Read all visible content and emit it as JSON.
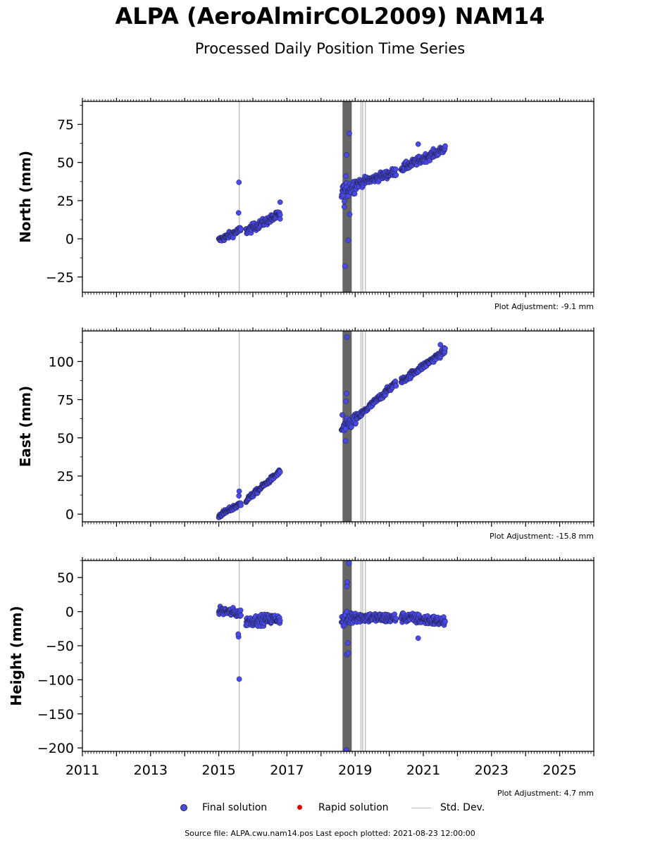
{
  "header": {
    "title": "ALPA (AeroAlmirCOL2009) NAM14",
    "subtitle": "Processed Daily Position Time Series"
  },
  "legend": {
    "final_label": "Final solution",
    "rapid_label": "Rapid solution",
    "std_label": "Std. Dev.",
    "final_color": "#4a4ae8",
    "rapid_color": "#e00000",
    "std_color": "#bbbbbb"
  },
  "footer": {
    "text": "Source file: ALPA.cwu.nam14.pos  Last epoch plotted: 2021-08-23 12:00:00"
  },
  "chart_data": [
    {
      "type": "scatter",
      "ylabel": "North (mm)",
      "xlim": [
        2011,
        2026
      ],
      "ylim": [
        -35,
        90
      ],
      "yticks": [
        -25,
        0,
        25,
        50,
        75
      ],
      "adjustment": "Plot Adjustment: -9.1 mm",
      "segments": [
        {
          "x0": 2015.0,
          "x1": 2015.65,
          "y0": -1,
          "y1": 6,
          "noise": 2
        },
        {
          "x0": 2015.8,
          "x1": 2016.8,
          "y0": 5,
          "y1": 16,
          "noise": 2.5
        },
        {
          "x0": 2018.6,
          "x1": 2019.05,
          "y0": 30,
          "y1": 36,
          "noise": 5
        },
        {
          "x0": 2019.05,
          "x1": 2020.2,
          "y0": 36,
          "y1": 44,
          "noise": 2.5
        },
        {
          "x0": 2020.35,
          "x1": 2021.64,
          "y0": 46,
          "y1": 59,
          "noise": 2.5
        }
      ],
      "outliers": [
        [
          2015.59,
          37
        ],
        [
          2015.58,
          17
        ],
        [
          2016.8,
          24
        ],
        [
          2016.8,
          13
        ],
        [
          2018.7,
          -18
        ],
        [
          2018.8,
          -1
        ],
        [
          2018.83,
          69
        ],
        [
          2018.75,
          55
        ],
        [
          2018.73,
          41
        ],
        [
          2018.68,
          21
        ],
        [
          2018.84,
          16
        ],
        [
          2020.85,
          62
        ]
      ]
    },
    {
      "type": "scatter",
      "ylabel": "East (mm)",
      "xlim": [
        2011,
        2026
      ],
      "ylim": [
        -5,
        120
      ],
      "yticks": [
        0,
        25,
        50,
        75,
        100
      ],
      "adjustment": "Plot Adjustment: -15.8 mm",
      "segments": [
        {
          "x0": 2015.0,
          "x1": 2015.65,
          "y0": -1,
          "y1": 7,
          "noise": 1.5
        },
        {
          "x0": 2015.8,
          "x1": 2016.8,
          "y0": 9,
          "y1": 28,
          "noise": 1.5
        },
        {
          "x0": 2018.6,
          "x1": 2019.05,
          "y0": 55,
          "y1": 63,
          "noise": 4
        },
        {
          "x0": 2019.05,
          "x1": 2020.2,
          "y0": 63,
          "y1": 86,
          "noise": 2
        },
        {
          "x0": 2020.35,
          "x1": 2021.64,
          "y0": 87,
          "y1": 107,
          "noise": 2
        }
      ],
      "outliers": [
        [
          2015.6,
          15
        ],
        [
          2015.59,
          12
        ],
        [
          2018.76,
          116
        ],
        [
          2018.75,
          79
        ],
        [
          2018.73,
          74
        ],
        [
          2018.72,
          48
        ],
        [
          2018.62,
          65
        ],
        [
          2021.5,
          111
        ]
      ]
    },
    {
      "type": "scatter",
      "ylabel": "Height (mm)",
      "xlim": [
        2011,
        2026
      ],
      "ylim": [
        -205,
        75
      ],
      "yticks": [
        -200,
        -150,
        -100,
        -50,
        0,
        50
      ],
      "xticks": [
        2011,
        2013,
        2015,
        2017,
        2019,
        2021,
        2023,
        2025
      ],
      "adjustment": "Plot Adjustment: 4.7 mm",
      "segments": [
        {
          "x0": 2015.0,
          "x1": 2015.65,
          "y0": 2,
          "y1": -3,
          "noise": 6
        },
        {
          "x0": 2015.8,
          "x1": 2016.8,
          "y0": -14,
          "y1": -10,
          "noise": 7
        },
        {
          "x0": 2018.6,
          "x1": 2019.05,
          "y0": -15,
          "y1": -5,
          "noise": 10
        },
        {
          "x0": 2019.05,
          "x1": 2020.2,
          "y0": -8,
          "y1": -10,
          "noise": 7
        },
        {
          "x0": 2020.35,
          "x1": 2021.64,
          "y0": -8,
          "y1": -15,
          "noise": 7
        }
      ],
      "outliers": [
        [
          2015.6,
          -99
        ],
        [
          2015.58,
          -37
        ],
        [
          2015.57,
          -33
        ],
        [
          2018.82,
          71
        ],
        [
          2018.77,
          43
        ],
        [
          2018.76,
          37
        ],
        [
          2018.75,
          -63
        ],
        [
          2018.8,
          -61
        ],
        [
          2018.78,
          -46
        ],
        [
          2018.74,
          -203
        ],
        [
          2020.85,
          -39
        ]
      ]
    }
  ]
}
